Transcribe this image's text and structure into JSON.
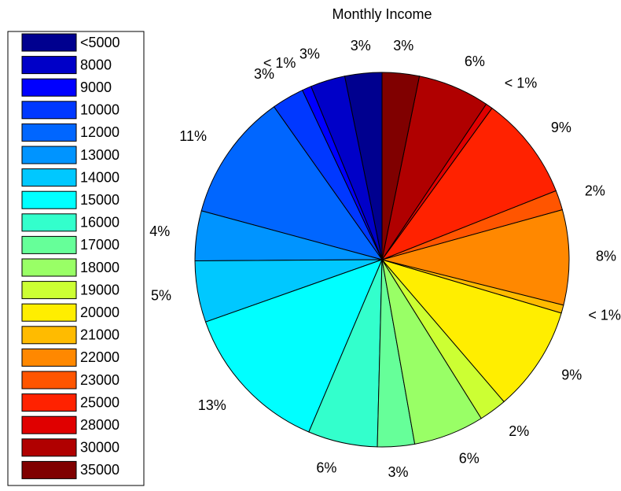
{
  "chart_data": {
    "type": "pie",
    "title": "Monthly Income",
    "categories": [
      "<5000",
      "8000",
      "9000",
      "10000",
      "12000",
      "13000",
      "14000",
      "15000",
      "16000",
      "17000",
      "18000",
      "19000",
      "20000",
      "21000",
      "22000",
      "23000",
      "25000",
      "28000",
      "30000",
      "35000"
    ],
    "values": [
      3.2,
      3.0,
      0.8,
      2.8,
      11.0,
      4.3,
      5.3,
      13.2,
      6.0,
      3.2,
      6.1,
      2.4,
      9.1,
      0.7,
      8.2,
      1.7,
      9.0,
      0.6,
      6.2,
      3.2
    ],
    "value_labels": [
      "3%",
      "3%",
      "< 1%",
      "3%",
      "11%",
      "4%",
      "5%",
      "13%",
      "6%",
      "3%",
      "6%",
      "2%",
      "9%",
      "< 1%",
      "8%",
      "2%",
      "9%",
      "< 1%",
      "6%",
      "3%"
    ],
    "colors": [
      "#00008f",
      "#0000c8",
      "#0000ff",
      "#0038ff",
      "#0066ff",
      "#0094ff",
      "#00c8ff",
      "#00ffff",
      "#33ffcc",
      "#66ff99",
      "#99ff66",
      "#ccff33",
      "#ffee00",
      "#ffbb00",
      "#ff8800",
      "#ff5500",
      "#ff2200",
      "#e00000",
      "#b00000",
      "#800000"
    ],
    "legend": "left"
  }
}
